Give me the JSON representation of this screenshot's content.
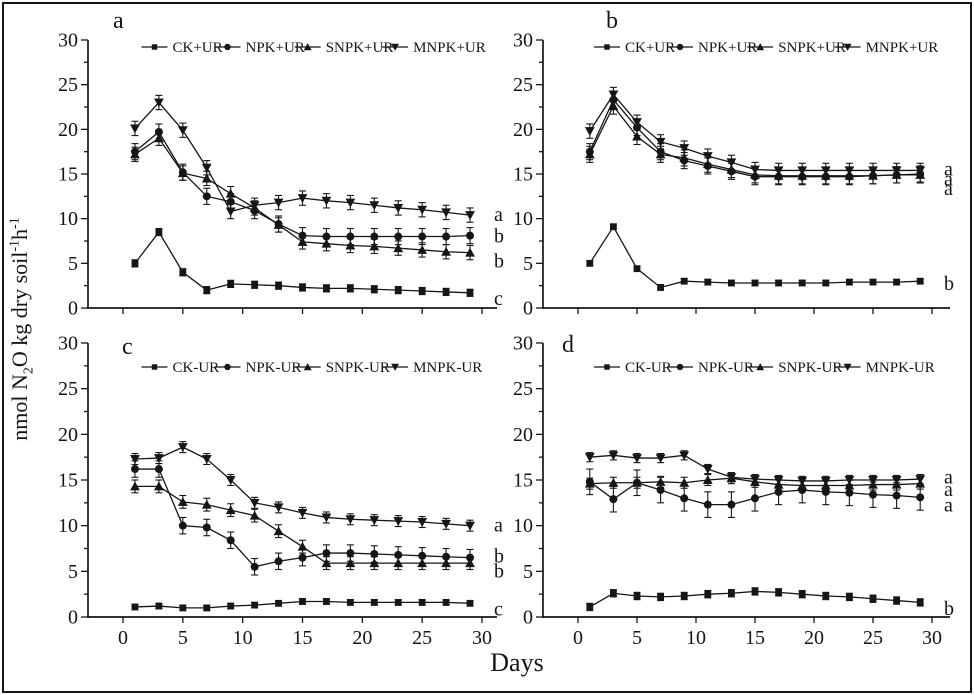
{
  "figure": {
    "xlabel": "Days",
    "ylabel": {
      "pre": "nmol N",
      "sub": "2",
      "mid": "O kg dry soil",
      "sup1": "-1",
      "mid2": "h",
      "sup2": "-1"
    },
    "ink": "#161616",
    "background": "#ffffff"
  },
  "chart_data": [
    {
      "type": "line",
      "panel": "a",
      "x": [
        1,
        3,
        5,
        7,
        9,
        11,
        13,
        15,
        17,
        19,
        21,
        23,
        25,
        27,
        29
      ],
      "xticks": [
        0,
        5,
        10,
        15,
        20,
        25,
        30
      ],
      "yticks": [
        0,
        5,
        10,
        15,
        20,
        25,
        30
      ],
      "xlim": [
        0,
        30
      ],
      "ylim": [
        0,
        30
      ],
      "x_tick_labels": false,
      "series": [
        {
          "name": "CK+UR",
          "marker": "square",
          "err": 0.4,
          "values": [
            5.0,
            8.5,
            4.0,
            2.0,
            2.7,
            2.6,
            2.5,
            2.3,
            2.2,
            2.2,
            2.1,
            2.0,
            1.9,
            1.8,
            1.7
          ]
        },
        {
          "name": "NPK+UR",
          "marker": "circle",
          "err": 0.9,
          "values": [
            17.5,
            19.7,
            15.2,
            12.5,
            11.9,
            10.9,
            9.4,
            8.1,
            8.0,
            8.0,
            8.0,
            8.0,
            8.0,
            8.0,
            8.1
          ]
        },
        {
          "name": "SNPK+UR",
          "marker": "triangle-up",
          "err": 0.8,
          "values": [
            17.2,
            19.0,
            15.1,
            14.5,
            12.8,
            11.2,
            9.3,
            7.4,
            7.2,
            7.0,
            6.9,
            6.7,
            6.5,
            6.3,
            6.2
          ]
        },
        {
          "name": "MNPK+UR",
          "marker": "triangle-down",
          "err": 0.8,
          "values": [
            20.1,
            23.0,
            19.9,
            15.7,
            10.8,
            11.5,
            11.8,
            12.3,
            12.0,
            11.8,
            11.5,
            11.2,
            11.0,
            10.7,
            10.4
          ]
        }
      ],
      "end_labels": [
        {
          "text": "a",
          "y": 10.4
        },
        {
          "text": "b",
          "y": 8.0
        },
        {
          "text": "b",
          "y": 5.2
        },
        {
          "text": "c",
          "y": 1.0
        }
      ]
    },
    {
      "type": "line",
      "panel": "b",
      "x": [
        1,
        3,
        5,
        7,
        9,
        11,
        13,
        15,
        17,
        19,
        21,
        23,
        25,
        27,
        29
      ],
      "xticks": [
        0,
        5,
        10,
        15,
        20,
        25,
        30
      ],
      "yticks": [
        0,
        5,
        10,
        15,
        20,
        25,
        30
      ],
      "xlim": [
        0,
        30
      ],
      "ylim": [
        0,
        30
      ],
      "x_tick_labels": false,
      "series": [
        {
          "name": "CK+UR",
          "marker": "square",
          "err": 0.3,
          "values": [
            5.0,
            9.1,
            4.4,
            2.3,
            3.0,
            2.9,
            2.8,
            2.8,
            2.8,
            2.8,
            2.8,
            2.9,
            2.9,
            2.9,
            3.0
          ]
        },
        {
          "name": "NPK+UR",
          "marker": "circle",
          "err": 0.9,
          "values": [
            17.5,
            23.3,
            20.2,
            17.5,
            16.5,
            15.9,
            15.3,
            14.7,
            14.7,
            14.7,
            14.7,
            14.7,
            14.8,
            14.9,
            15.0
          ]
        },
        {
          "name": "SNPK+UR",
          "marker": "triangle-up",
          "err": 0.9,
          "values": [
            17.2,
            22.6,
            19.2,
            17.2,
            16.8,
            16.1,
            15.5,
            14.9,
            14.8,
            14.8,
            14.8,
            14.8,
            14.8,
            14.9,
            14.9
          ]
        },
        {
          "name": "MNPK+UR",
          "marker": "triangle-down",
          "err": 0.8,
          "values": [
            19.8,
            23.9,
            20.8,
            18.6,
            17.9,
            17.0,
            16.3,
            15.5,
            15.4,
            15.4,
            15.4,
            15.4,
            15.4,
            15.4,
            15.4
          ]
        }
      ],
      "end_labels": [
        {
          "text": "a",
          "y": 15.5
        },
        {
          "text": "a",
          "y": 14.4
        },
        {
          "text": "a",
          "y": 13.3
        },
        {
          "text": "b",
          "y": 2.7
        }
      ]
    },
    {
      "type": "line",
      "panel": "c",
      "x": [
        1,
        3,
        5,
        7,
        9,
        11,
        13,
        15,
        17,
        19,
        21,
        23,
        25,
        27,
        29
      ],
      "xticks": [
        0,
        5,
        10,
        15,
        20,
        25,
        30
      ],
      "yticks": [
        0,
        5,
        10,
        15,
        20,
        25,
        30
      ],
      "xlim": [
        0,
        30
      ],
      "ylim": [
        0,
        30
      ],
      "x_tick_labels": true,
      "series": [
        {
          "name": "CK-UR",
          "marker": "square",
          "err": 0.3,
          "values": [
            1.1,
            1.2,
            1.0,
            1.0,
            1.2,
            1.3,
            1.5,
            1.7,
            1.7,
            1.6,
            1.6,
            1.6,
            1.6,
            1.6,
            1.5
          ]
        },
        {
          "name": "NPK-UR",
          "marker": "circle",
          "err": 0.9,
          "values": [
            16.2,
            16.2,
            10.0,
            9.8,
            8.4,
            5.5,
            6.1,
            6.5,
            7.0,
            7.0,
            6.9,
            6.8,
            6.7,
            6.6,
            6.5
          ]
        },
        {
          "name": "SNPK-UR",
          "marker": "triangle-up",
          "err": 0.7,
          "values": [
            14.3,
            14.3,
            12.6,
            12.3,
            11.7,
            11.1,
            9.4,
            7.7,
            5.9,
            5.9,
            5.9,
            5.9,
            5.9,
            5.9,
            5.9
          ]
        },
        {
          "name": "MNPK-UR",
          "marker": "triangle-down",
          "err": 0.6,
          "values": [
            17.3,
            17.4,
            18.6,
            17.3,
            15.0,
            12.5,
            12.0,
            11.4,
            10.9,
            10.7,
            10.6,
            10.5,
            10.4,
            10.2,
            10.0
          ]
        }
      ],
      "end_labels": [
        {
          "text": "a",
          "y": 10.0
        },
        {
          "text": "b",
          "y": 6.6
        },
        {
          "text": "b",
          "y": 5.0
        },
        {
          "text": "c",
          "y": 0.8
        }
      ]
    },
    {
      "type": "line",
      "panel": "d",
      "x": [
        1,
        3,
        5,
        7,
        9,
        11,
        13,
        15,
        17,
        19,
        21,
        23,
        25,
        27,
        29
      ],
      "xticks": [
        0,
        5,
        10,
        15,
        20,
        25,
        30
      ],
      "yticks": [
        0,
        5,
        10,
        15,
        20,
        25,
        30
      ],
      "xlim": [
        0,
        30
      ],
      "ylim": [
        0,
        30
      ],
      "x_tick_labels": true,
      "series": [
        {
          "name": "CK-UR",
          "marker": "square",
          "err": 0.4,
          "values": [
            1.1,
            2.6,
            2.3,
            2.2,
            2.3,
            2.5,
            2.6,
            2.8,
            2.7,
            2.5,
            2.3,
            2.2,
            2.0,
            1.8,
            1.6
          ]
        },
        {
          "name": "NPK-UR",
          "marker": "circle",
          "err": 1.4,
          "values": [
            14.8,
            12.9,
            14.7,
            13.9,
            13.0,
            12.3,
            12.3,
            13.0,
            13.7,
            13.9,
            13.7,
            13.6,
            13.4,
            13.3,
            13.1
          ]
        },
        {
          "name": "SNPK-UR",
          "marker": "triangle-up",
          "err": 0.6,
          "values": [
            14.6,
            14.7,
            14.7,
            14.8,
            14.7,
            15.0,
            15.2,
            14.8,
            14.5,
            14.4,
            14.4,
            14.4,
            14.5,
            14.5,
            14.6
          ]
        },
        {
          "name": "MNPK-UR",
          "marker": "triangle-down",
          "err": 0.5,
          "values": [
            17.5,
            17.7,
            17.4,
            17.4,
            17.7,
            16.2,
            15.3,
            15.1,
            15.0,
            14.9,
            14.9,
            15.0,
            15.0,
            15.0,
            15.1
          ]
        }
      ],
      "end_labels": [
        {
          "text": "a",
          "y": 15.3
        },
        {
          "text": "a",
          "y": 13.9
        },
        {
          "text": "a",
          "y": 12.2
        },
        {
          "text": "b",
          "y": 0.9
        }
      ]
    }
  ]
}
